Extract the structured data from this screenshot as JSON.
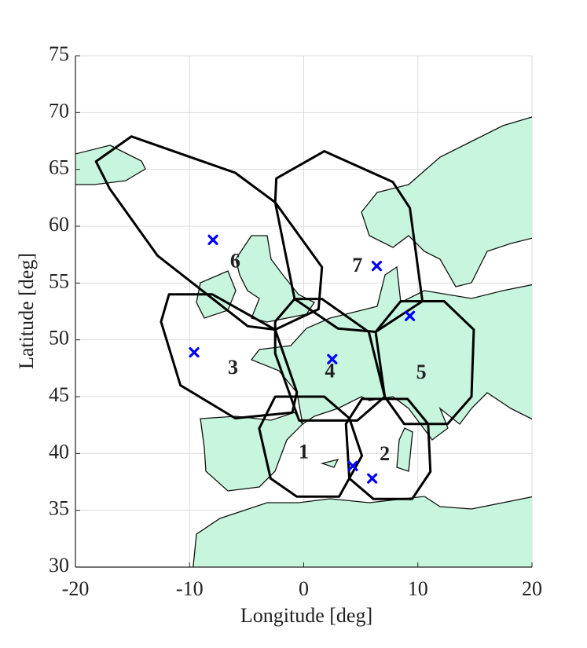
{
  "chart_data": {
    "type": "map",
    "xlabel": "Longitude [deg]",
    "ylabel": "Latitude [deg]",
    "xlim": [
      -20,
      20
    ],
    "ylim": [
      30,
      75
    ],
    "xticks": [
      -20,
      -10,
      0,
      10,
      20
    ],
    "yticks": [
      30,
      35,
      40,
      45,
      50,
      55,
      60,
      65,
      70,
      75
    ],
    "grid": true,
    "region_color": "#000000",
    "regions": [
      {
        "name": "1",
        "label_lon": 0.0,
        "label_lat": 40.0,
        "lon": [
          -2.5,
          1.8,
          4.0,
          5.1,
          3.1,
          -0.6,
          -2.9,
          -3.9
        ],
        "lat": [
          45.0,
          45.0,
          43.1,
          39.8,
          36.2,
          36.2,
          37.8,
          42.2
        ]
      },
      {
        "name": "2",
        "label_lon": 7.1,
        "label_lat": 39.8,
        "lon": [
          5.1,
          9.1,
          10.9,
          11.1,
          9.5,
          6.1,
          4.0,
          3.7
        ],
        "lat": [
          44.8,
          44.8,
          42.6,
          38.4,
          36.0,
          36.0,
          37.8,
          42.6
        ]
      },
      {
        "name": "3",
        "label_lon": -6.2,
        "label_lat": 47.4,
        "lon": [
          -11.8,
          -8.0,
          -2.5,
          -0.6,
          -1.0,
          -6.0,
          -10.8,
          -12.5
        ],
        "lat": [
          54.0,
          54.0,
          50.9,
          45.4,
          43.6,
          43.1,
          46.0,
          51.6
        ]
      },
      {
        "name": "4",
        "label_lon": 2.3,
        "label_lat": 47.1,
        "lon": [
          -0.8,
          1.6,
          5.7,
          7.1,
          4.7,
          -0.4,
          -2.5,
          -2.5
        ],
        "lat": [
          53.6,
          53.6,
          50.7,
          45.0,
          42.9,
          42.9,
          48.8,
          51.6
        ]
      },
      {
        "name": "5",
        "label_lon": 10.3,
        "label_lat": 47.0,
        "lon": [
          8.5,
          12.3,
          14.9,
          14.7,
          12.6,
          8.8,
          7.1,
          6.3
        ],
        "lat": [
          53.4,
          53.4,
          50.9,
          45.0,
          42.6,
          42.6,
          45.0,
          50.7
        ]
      },
      {
        "name": "6",
        "label_lon": -6.0,
        "label_lat": 56.8,
        "lon": [
          -18.2,
          -15.1,
          -6.0,
          -2.5,
          1.6,
          1.3,
          -2.5,
          -4.9,
          -12.8,
          -17.0
        ],
        "lat": [
          65.7,
          67.9,
          64.7,
          62.1,
          56.4,
          52.7,
          50.9,
          51.2,
          57.4,
          63.3
        ]
      },
      {
        "name": "7",
        "label_lon": 4.7,
        "label_lat": 56.4,
        "lon": [
          -2.4,
          1.8,
          7.8,
          9.3,
          10.4,
          6.3,
          3.0,
          -0.8,
          -2.5
        ],
        "lat": [
          64.2,
          66.6,
          63.9,
          61.6,
          53.4,
          50.7,
          51.0,
          53.6,
          62.1
        ]
      }
    ],
    "markers": {
      "color": "#0000ff",
      "lon": [
        -7.95,
        -9.6,
        2.5,
        6.4,
        9.3,
        4.3,
        6.0
      ],
      "lat": [
        58.8,
        48.9,
        48.3,
        56.5,
        52.1,
        38.9,
        37.8
      ]
    }
  }
}
